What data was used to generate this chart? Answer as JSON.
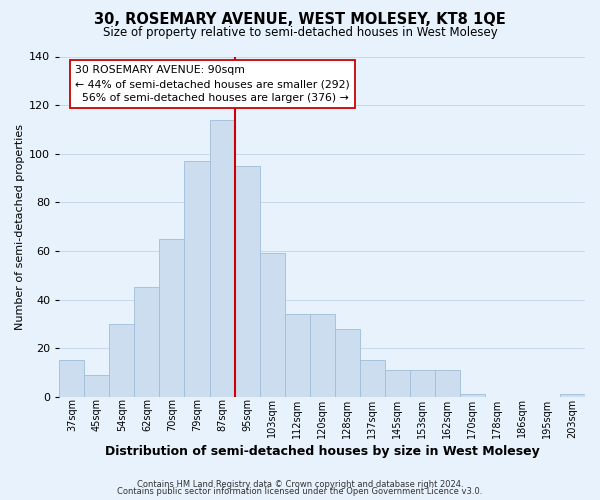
{
  "title": "30, ROSEMARY AVENUE, WEST MOLESEY, KT8 1QE",
  "subtitle": "Size of property relative to semi-detached houses in West Molesey",
  "xlabel": "Distribution of semi-detached houses by size in West Molesey",
  "ylabel": "Number of semi-detached properties",
  "bin_labels": [
    "37sqm",
    "45sqm",
    "54sqm",
    "62sqm",
    "70sqm",
    "79sqm",
    "87sqm",
    "95sqm",
    "103sqm",
    "112sqm",
    "120sqm",
    "128sqm",
    "137sqm",
    "145sqm",
    "153sqm",
    "162sqm",
    "170sqm",
    "178sqm",
    "186sqm",
    "195sqm",
    "203sqm"
  ],
  "bar_values": [
    15,
    9,
    30,
    45,
    65,
    97,
    114,
    95,
    59,
    34,
    34,
    28,
    15,
    11,
    11,
    11,
    1,
    0,
    0,
    0,
    1
  ],
  "bar_color": "#ccddf0",
  "bar_edge_color": "#9fbcd8",
  "vline_pos": 6.5,
  "property_label": "30 ROSEMARY AVENUE: 90sqm",
  "smaller_pct": "44%",
  "smaller_count": 292,
  "larger_pct": "56%",
  "larger_count": 376,
  "ylim": [
    0,
    140
  ],
  "yticks": [
    0,
    20,
    40,
    60,
    80,
    100,
    120,
    140
  ],
  "footer1": "Contains HM Land Registry data © Crown copyright and database right 2024.",
  "footer2": "Contains public sector information licensed under the Open Government Licence v3.0.",
  "annotation_box_color": "#ffffff",
  "annotation_box_edgecolor": "#cc0000",
  "vline_color": "#cc0000",
  "grid_color": "#c8d8ea",
  "bg_color": "#e8f2fc"
}
